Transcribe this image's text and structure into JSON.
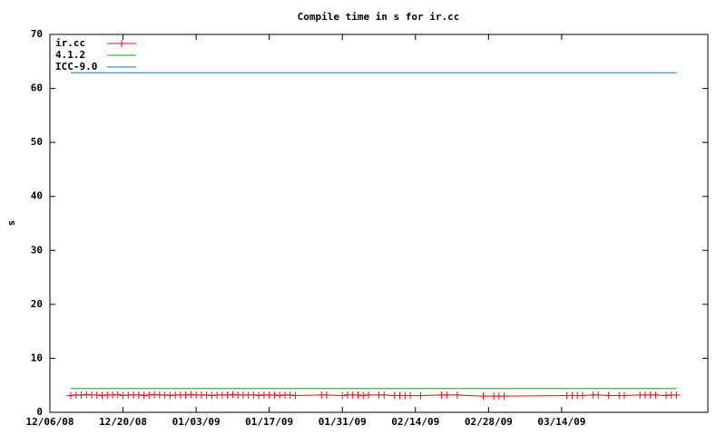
{
  "chart_data": {
    "type": "line",
    "title": "Compile time in s for ir.cc",
    "ylabel": "s",
    "xlim": [
      "2008-12-06",
      "2009-04-11"
    ],
    "xticks": [
      {
        "value": "2008-12-06",
        "label": "12/06/08"
      },
      {
        "value": "2008-12-20",
        "label": "12/20/08"
      },
      {
        "value": "2009-01-03",
        "label": "01/03/09"
      },
      {
        "value": "2009-01-17",
        "label": "01/17/09"
      },
      {
        "value": "2009-01-31",
        "label": "01/31/09"
      },
      {
        "value": "2009-02-14",
        "label": "02/14/09"
      },
      {
        "value": "2009-02-28",
        "label": "02/28/09"
      },
      {
        "value": "2009-03-14",
        "label": "03/14/09"
      }
    ],
    "ylim": [
      0,
      70
    ],
    "yticks": [
      0,
      10,
      20,
      30,
      40,
      50,
      60,
      70
    ],
    "legend": "upper left",
    "series": [
      {
        "name": "ir.cc",
        "color": "#e0101a",
        "markers": true,
        "x": [
          "2008-12-10",
          "2008-12-11",
          "2008-12-12",
          "2008-12-13",
          "2008-12-14",
          "2008-12-15",
          "2008-12-16",
          "2008-12-17",
          "2008-12-18",
          "2008-12-19",
          "2008-12-20",
          "2008-12-21",
          "2008-12-22",
          "2008-12-23",
          "2008-12-24",
          "2008-12-25",
          "2008-12-26",
          "2008-12-27",
          "2008-12-28",
          "2008-12-29",
          "2008-12-30",
          "2008-12-31",
          "2009-01-01",
          "2009-01-02",
          "2009-01-03",
          "2009-01-04",
          "2009-01-05",
          "2009-01-06",
          "2009-01-07",
          "2009-01-08",
          "2009-01-09",
          "2009-01-10",
          "2009-01-11",
          "2009-01-12",
          "2009-01-13",
          "2009-01-14",
          "2009-01-15",
          "2009-01-16",
          "2009-01-17",
          "2009-01-18",
          "2009-01-19",
          "2009-01-20",
          "2009-01-21",
          "2009-01-22",
          "2009-01-27",
          "2009-01-28",
          "2009-01-31",
          "2009-02-01",
          "2009-02-02",
          "2009-02-03",
          "2009-02-04",
          "2009-02-05",
          "2009-02-07",
          "2009-02-08",
          "2009-02-10",
          "2009-02-11",
          "2009-02-12",
          "2009-02-13",
          "2009-02-15",
          "2009-02-19",
          "2009-02-20",
          "2009-02-22",
          "2009-02-27",
          "2009-03-01",
          "2009-03-02",
          "2009-03-03",
          "2009-03-15",
          "2009-03-16",
          "2009-03-17",
          "2009-03-18",
          "2009-03-20",
          "2009-03-21",
          "2009-03-23",
          "2009-03-25",
          "2009-03-26",
          "2009-03-29",
          "2009-03-30",
          "2009-03-31",
          "2009-04-01",
          "2009-04-03",
          "2009-04-04",
          "2009-04-05"
        ],
        "values": [
          3.1,
          3.2,
          3.2,
          3.3,
          3.2,
          3.2,
          3.1,
          3.2,
          3.2,
          3.3,
          3.1,
          3.2,
          3.2,
          3.2,
          3.1,
          3.2,
          3.3,
          3.2,
          3.2,
          3.1,
          3.2,
          3.2,
          3.2,
          3.3,
          3.2,
          3.2,
          3.2,
          3.1,
          3.2,
          3.2,
          3.2,
          3.3,
          3.2,
          3.2,
          3.2,
          3.2,
          3.1,
          3.2,
          3.2,
          3.2,
          3.1,
          3.2,
          3.2,
          3.1,
          3.2,
          3.2,
          3.1,
          3.2,
          3.2,
          3.2,
          3.1,
          3.2,
          3.2,
          3.2,
          3.1,
          3.1,
          3.1,
          3.1,
          3.1,
          3.2,
          3.2,
          3.2,
          3.0,
          3.0,
          3.0,
          3.0,
          3.1,
          3.1,
          3.1,
          3.1,
          3.2,
          3.2,
          3.1,
          3.1,
          3.1,
          3.2,
          3.2,
          3.2,
          3.2,
          3.1,
          3.2,
          3.2
        ]
      },
      {
        "name": "4.1.2",
        "color": "#10a010",
        "x": [
          "2008-12-10",
          "2009-04-05"
        ],
        "values": [
          4.4,
          4.4
        ]
      },
      {
        "name": "ICC-9.0",
        "color": "#1070d0",
        "x": [
          "2008-12-10",
          "2009-04-05"
        ],
        "values": [
          62.9,
          62.9
        ]
      }
    ]
  }
}
